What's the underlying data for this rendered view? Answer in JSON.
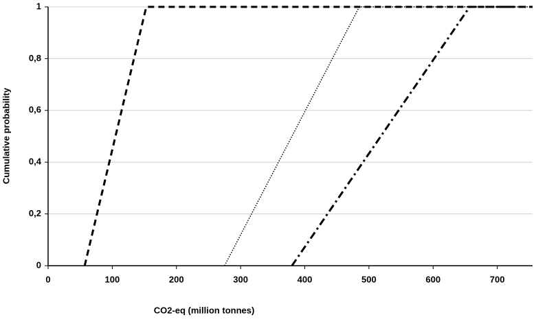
{
  "chart_data": {
    "type": "line",
    "x_label": "CO2-eq (million tonnes)",
    "y_label": "Cumulative probability",
    "series": [
      {
        "color": "#000000",
        "dash": "dashed",
        "x": [
          57,
          153,
          755
        ],
        "values": [
          0,
          1,
          1
        ]
      },
      {
        "color": "#000000",
        "dash": "dotted",
        "x": [
          275,
          485,
          755
        ],
        "values": [
          0,
          1,
          1
        ]
      },
      {
        "color": "#000000",
        "dash": "dashdot",
        "x": [
          380,
          657,
          755
        ],
        "values": [
          0,
          1,
          1
        ]
      }
    ],
    "xlim": [
      0,
      755
    ],
    "xticks": [
      0,
      100,
      200,
      300,
      400,
      500,
      600,
      700
    ],
    "ylim": [
      0,
      1
    ],
    "yticks": [
      0,
      {
        "value": 0.2,
        "label": "0,2"
      },
      {
        "value": 0.4,
        "label": "0,4"
      },
      {
        "value": 0.6,
        "label": "0,6"
      },
      {
        "value": 0.8,
        "label": "0,8"
      },
      1
    ],
    "grid": true
  }
}
